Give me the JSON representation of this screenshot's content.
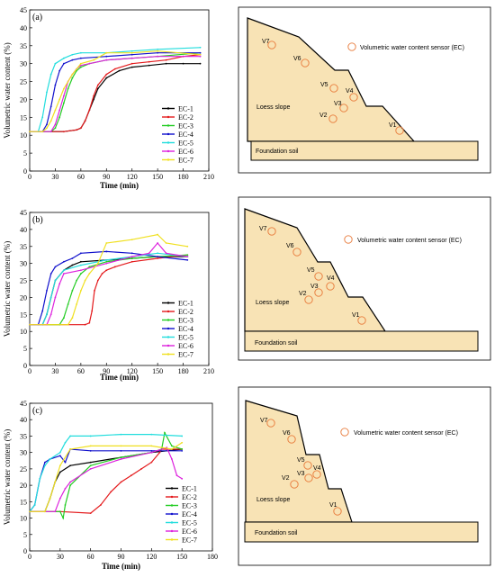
{
  "chart_data": [
    {
      "type": "line",
      "panel": "(a)",
      "xlabel": "Time (min)",
      "ylabel": "Volumetric water content  (%)",
      "xlim": [
        0,
        210
      ],
      "ylim": [
        0,
        45
      ],
      "xticks": [
        0,
        30,
        60,
        90,
        120,
        150,
        180,
        210
      ],
      "yticks": [
        0,
        5,
        10,
        15,
        20,
        25,
        30,
        35,
        40,
        45
      ],
      "legend": "bottom-right",
      "series": [
        {
          "name": "EC-1",
          "color": "#000000",
          "x": [
            0,
            40,
            55,
            60,
            65,
            70,
            75,
            80,
            90,
            105,
            120,
            140,
            160,
            180,
            200
          ],
          "y": [
            11,
            11,
            11.5,
            12,
            14,
            17,
            20,
            23,
            26,
            28,
            29,
            29.5,
            30,
            30,
            30
          ]
        },
        {
          "name": "EC-2",
          "color": "#e41a1c",
          "x": [
            0,
            40,
            55,
            60,
            65,
            70,
            75,
            80,
            90,
            100,
            120,
            140,
            160,
            180,
            200
          ],
          "y": [
            11,
            11,
            11.5,
            12,
            14,
            17,
            21,
            24,
            27,
            28.5,
            30,
            30.5,
            31,
            32,
            32.5
          ]
        },
        {
          "name": "EC-3",
          "color": "#22cc22",
          "x": [
            0,
            25,
            30,
            35,
            40,
            45,
            50,
            55,
            60,
            70,
            90,
            120,
            150,
            200
          ],
          "y": [
            11,
            11,
            12,
            15,
            19,
            23,
            26,
            28,
            29,
            30,
            31,
            31.5,
            32,
            33
          ]
        },
        {
          "name": "EC-4",
          "color": "#1010cc",
          "x": [
            0,
            15,
            20,
            25,
            30,
            35,
            40,
            50,
            60,
            90,
            120,
            150,
            200
          ],
          "y": [
            11,
            11,
            13,
            18,
            24,
            28,
            30,
            31,
            31.5,
            32,
            32.5,
            33,
            33
          ]
        },
        {
          "name": "EC-5",
          "color": "#22dddd",
          "x": [
            0,
            10,
            15,
            20,
            25,
            30,
            40,
            50,
            60,
            90,
            120,
            150,
            200
          ],
          "y": [
            11,
            11,
            15,
            22,
            27,
            30,
            31.5,
            32.5,
            33,
            33,
            33.5,
            34,
            34.5
          ]
        },
        {
          "name": "EC-6",
          "color": "#dd22dd",
          "x": [
            0,
            25,
            30,
            35,
            40,
            45,
            50,
            55,
            60,
            70,
            90,
            120,
            150,
            200
          ],
          "y": [
            11,
            11,
            13,
            17,
            21,
            25,
            27,
            28.5,
            29.5,
            30,
            31,
            31.5,
            32,
            32
          ]
        },
        {
          "name": "EC-7",
          "color": "#f0e020",
          "x": [
            0,
            15,
            20,
            25,
            30,
            35,
            40,
            50,
            60,
            75,
            90,
            120,
            150,
            200
          ],
          "y": [
            11,
            11,
            12,
            14,
            17,
            20,
            23,
            27,
            30,
            31,
            33,
            33,
            33.5,
            32.5
          ]
        }
      ],
      "diagram": {
        "legend_text": "Volumetric water content sensor (EC)",
        "slope_label": "Loess slope",
        "foundation_label": "Foundation soil",
        "sensors": [
          "V1",
          "V2",
          "V3",
          "V4",
          "V5",
          "V6",
          "V7"
        ]
      }
    },
    {
      "type": "line",
      "panel": "(b)",
      "xlabel": "Time (min)",
      "ylabel": "Volumetric water content  (%)",
      "xlim": [
        0,
        210
      ],
      "ylim": [
        0,
        45
      ],
      "xticks": [
        0,
        30,
        60,
        90,
        120,
        150,
        180,
        210
      ],
      "yticks": [
        0,
        5,
        10,
        15,
        20,
        25,
        30,
        35,
        40,
        45
      ],
      "legend": "bottom-right",
      "series": [
        {
          "name": "EC-1",
          "color": "#000000",
          "x": [
            0,
            15,
            20,
            25,
            30,
            40,
            50,
            60,
            90,
            120,
            150,
            185
          ],
          "y": [
            12,
            12,
            15,
            20,
            25,
            28,
            29.5,
            30.5,
            31,
            31.5,
            32,
            32
          ]
        },
        {
          "name": "EC-2",
          "color": "#e41a1c",
          "x": [
            0,
            65,
            70,
            73,
            76,
            80,
            85,
            90,
            100,
            120,
            150,
            185
          ],
          "y": [
            12,
            12,
            12.5,
            16,
            22,
            25,
            27,
            28,
            29,
            30.5,
            31.5,
            32.5
          ]
        },
        {
          "name": "EC-3",
          "color": "#22cc22",
          "x": [
            0,
            35,
            40,
            45,
            50,
            55,
            60,
            70,
            90,
            120,
            150,
            185
          ],
          "y": [
            12,
            12,
            14,
            18,
            22,
            25,
            27,
            29,
            30.5,
            31.5,
            32,
            32.5
          ]
        },
        {
          "name": "EC-4",
          "color": "#1010cc",
          "x": [
            0,
            10,
            15,
            20,
            25,
            30,
            40,
            50,
            60,
            90,
            120,
            150,
            185
          ],
          "y": [
            12,
            12,
            16,
            22,
            27,
            29,
            30.5,
            31.5,
            33,
            33.5,
            33,
            32,
            31
          ]
        },
        {
          "name": "EC-5",
          "color": "#22dddd",
          "x": [
            0,
            15,
            20,
            25,
            30,
            40,
            60,
            90,
            120,
            150,
            185
          ],
          "y": [
            12,
            12,
            15,
            20,
            25,
            28,
            29.5,
            31,
            32,
            33,
            32
          ]
        },
        {
          "name": "EC-6",
          "color": "#dd22dd",
          "x": [
            0,
            20,
            25,
            30,
            35,
            40,
            60,
            90,
            120,
            140,
            150,
            160,
            185
          ],
          "y": [
            12,
            12,
            15,
            20,
            24,
            27,
            28,
            30,
            32,
            33,
            36,
            33,
            32
          ]
        },
        {
          "name": "EC-7",
          "color": "#f0e020",
          "x": [
            0,
            45,
            50,
            55,
            60,
            65,
            70,
            80,
            90,
            120,
            150,
            160,
            185
          ],
          "y": [
            12,
            12,
            14,
            18,
            22,
            25,
            27,
            30,
            36,
            37,
            38.5,
            36,
            35
          ]
        }
      ],
      "diagram": {
        "legend_text": "Volumetric water content sensor (EC)",
        "slope_label": "Loess slope",
        "foundation_label": "Foundation soil",
        "sensors": [
          "V1",
          "V2",
          "V3",
          "V4",
          "V5",
          "V6",
          "V7"
        ]
      }
    },
    {
      "type": "line",
      "panel": "(c)",
      "xlabel": "Time (min)",
      "ylabel": "Volumetric water content  (%)",
      "xlim": [
        0,
        180
      ],
      "ylim": [
        0,
        45
      ],
      "xticks": [
        0,
        30,
        60,
        90,
        120,
        150,
        180
      ],
      "yticks": [
        0,
        5,
        10,
        15,
        20,
        25,
        30,
        35,
        40,
        45
      ],
      "legend": "bottom-right",
      "series": [
        {
          "name": "EC-1",
          "color": "#000000",
          "x": [
            0,
            15,
            20,
            25,
            30,
            40,
            60,
            90,
            120,
            150
          ],
          "y": [
            12,
            12,
            16,
            21,
            24,
            26,
            27,
            28.5,
            30,
            31
          ]
        },
        {
          "name": "EC-2",
          "color": "#e41a1c",
          "x": [
            0,
            30,
            60,
            70,
            80,
            90,
            100,
            110,
            120,
            128,
            130,
            135,
            150
          ],
          "y": [
            12,
            12,
            11.5,
            14,
            18,
            21,
            23,
            25,
            27,
            30,
            31,
            31,
            31
          ]
        },
        {
          "name": "EC-3",
          "color": "#22cc22",
          "x": [
            0,
            30,
            33,
            35,
            40,
            60,
            90,
            120,
            130,
            133,
            140,
            150
          ],
          "y": [
            12,
            12,
            10,
            14,
            20,
            26,
            28.5,
            30,
            31,
            36,
            32,
            31
          ]
        },
        {
          "name": "EC-4",
          "color": "#1010cc",
          "x": [
            0,
            5,
            10,
            15,
            20,
            30,
            35,
            40,
            60,
            90,
            120,
            150
          ],
          "y": [
            12,
            14,
            22,
            27,
            28,
            29,
            27,
            31,
            30.5,
            30.5,
            30.5,
            30.5
          ]
        },
        {
          "name": "EC-5",
          "color": "#22dddd",
          "x": [
            0,
            5,
            10,
            15,
            20,
            30,
            35,
            40,
            60,
            90,
            120,
            150
          ],
          "y": [
            12,
            14,
            22,
            26,
            28,
            30,
            33,
            35,
            35,
            35.5,
            35.5,
            35
          ]
        },
        {
          "name": "EC-6",
          "color": "#dd22dd",
          "x": [
            0,
            25,
            30,
            35,
            40,
            60,
            90,
            120,
            135,
            140,
            145,
            150
          ],
          "y": [
            12,
            12,
            16,
            19,
            21,
            25,
            28,
            30,
            31.5,
            28,
            23,
            22
          ]
        },
        {
          "name": "EC-7",
          "color": "#f0e020",
          "x": [
            0,
            15,
            20,
            25,
            30,
            40,
            60,
            90,
            120,
            140,
            150
          ],
          "y": [
            12,
            12,
            16,
            21,
            26,
            31,
            32,
            32,
            32,
            31,
            33
          ]
        }
      ],
      "diagram": {
        "legend_text": "Volumetric water content sensor (EC)",
        "slope_label": "Loess slope",
        "foundation_label": "Foundation soil",
        "sensors": [
          "V1",
          "V2",
          "V3",
          "V4",
          "V5",
          "V6",
          "V7"
        ]
      }
    }
  ]
}
